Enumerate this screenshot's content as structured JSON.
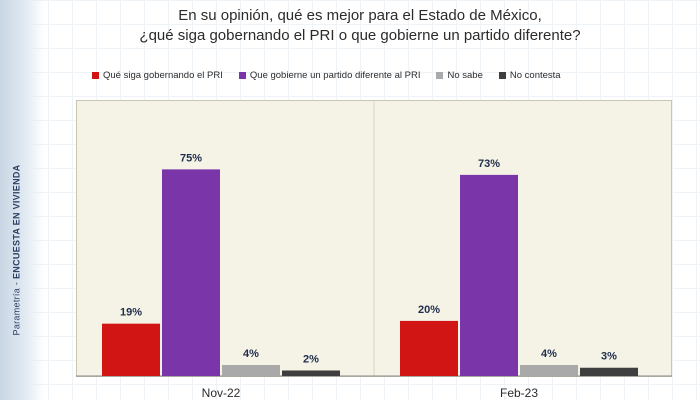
{
  "title": {
    "line1": "En su opinión, qué es mejor para el Estado de México,",
    "line2": "¿qué siga gobernando  el PRI o que gobierne  un partido diferente?"
  },
  "side_label": {
    "brand": "Parametría",
    "text": "ENCUESTA EN VIVIENDA"
  },
  "chart_data": {
    "type": "bar",
    "title": "En su opinión, qué es mejor para el Estado de México, ¿qué siga gobernando el PRI o que gobierne un partido diferente?",
    "categories": [
      "Nov-22",
      "Feb-23"
    ],
    "series": [
      {
        "name": "Qué siga gobernando el PRI",
        "color": "#d11515",
        "values": [
          19,
          20
        ]
      },
      {
        "name": "Que gobierne un partido diferente al PRI",
        "color": "#7a35a8",
        "values": [
          75,
          73
        ]
      },
      {
        "name": "No sabe",
        "color": "#a9a9a9",
        "values": [
          4,
          4
        ]
      },
      {
        "name": "No contesta",
        "color": "#3f3f3f",
        "values": [
          2,
          3
        ]
      }
    ],
    "value_suffix": "%",
    "xlabel": "",
    "ylabel": "",
    "ylim": [
      0,
      90
    ],
    "grid": false,
    "legend": "top"
  }
}
